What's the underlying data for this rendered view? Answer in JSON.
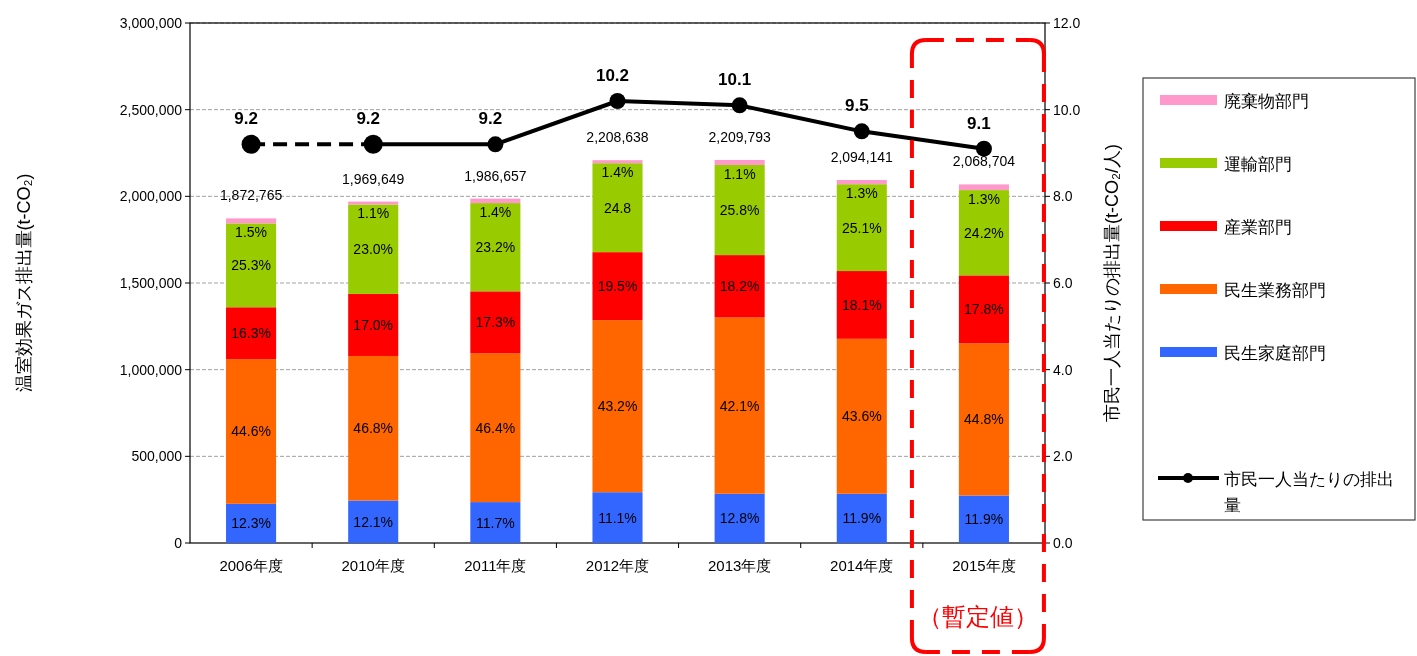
{
  "chart_data": {
    "type": "bar",
    "stacked": true,
    "categories": [
      "2006年度",
      "2010年度",
      "2011年度",
      "2012年度",
      "2013年度",
      "2014年度",
      "2015年度"
    ],
    "series": [
      {
        "name": "民生家庭部門",
        "color": "#3366ff",
        "values": [
          226000,
          245000,
          236000,
          293000,
          284000,
          284000,
          274000
        ]
      },
      {
        "name": "民生業務部門",
        "color": "#ff6600",
        "values": [
          835000,
          834000,
          858000,
          993000,
          1017000,
          894000,
          878000
        ]
      },
      {
        "name": "産業部門",
        "color": "#ff0000",
        "values": [
          299000,
          358000,
          358000,
          392000,
          360000,
          391000,
          392000
        ]
      },
      {
        "name": "運輸部門",
        "color": "#99cc00",
        "values": [
          484000,
          516000,
          509000,
          513000,
          520000,
          501000,
          492000
        ]
      },
      {
        "name": "廃棄物部門",
        "color": "#ff99cc",
        "values": [
          28765,
          16649,
          25657,
          17638,
          28793,
          24141,
          32704
        ]
      },
      {
        "type": "line",
        "axis": "y2",
        "color": "#000000",
        "line_style": "dashed",
        "marker": "circle",
        "values": [
          9.2,
          9.2,
          null,
          null,
          null,
          null,
          null
        ],
        "value_labels": [
          "9.2",
          null,
          null,
          null,
          null,
          null,
          null
        ]
      },
      {
        "name": "市民一人当たりの排出量",
        "type": "line",
        "axis": "y2",
        "color": "#000000",
        "line_style": "solid",
        "marker": "circle",
        "values": [
          null,
          9.2,
          9.2,
          10.2,
          10.1,
          9.5,
          9.1
        ],
        "value_labels": [
          null,
          "9.2",
          "9.2",
          "10.2",
          "10.1",
          "9.5",
          "9.1"
        ]
      }
    ],
    "totals": [
      "1,872,765",
      "1,969,649",
      "1,986,657",
      "2,208,638",
      "2,209,793",
      "2,094,141",
      "2,068,704"
    ],
    "ylim": [
      0,
      3000000
    ],
    "yticks": [
      0,
      {
        "value": 500000,
        "label": "500,000"
      },
      {
        "value": 1000000,
        "label": "1,000,000"
      },
      {
        "value": 1500000,
        "label": "1,500,000"
      },
      {
        "value": 2000000,
        "label": "2,000,000"
      },
      {
        "value": 2500000,
        "label": "2,500,000"
      },
      {
        "value": 3000000,
        "label": "3,000,000"
      }
    ],
    "y2lim": [
      0,
      12
    ],
    "y2ticks": [
      {
        "value": 0,
        "label": "0.0"
      },
      {
        "value": 2,
        "label": "2.0"
      },
      {
        "value": 4,
        "label": "4.0"
      },
      {
        "value": 6,
        "label": "6.0"
      },
      {
        "value": 8,
        "label": "8.0"
      },
      {
        "value": 10,
        "label": "10.0"
      },
      {
        "value": 12,
        "label": "12.0"
      }
    ],
    "ylabel": "温室効果ガス排出量(t-CO₂)",
    "y2label": "市民一人当たりの排出量(t-CO₂/人)",
    "grid": "y",
    "legend": "right",
    "annotations": [
      "12.3%",
      "44.6%",
      "16.3%",
      "25.3%",
      "1.5%",
      "12.1%",
      "46.8%",
      "17.0%",
      "23.0%",
      "1.1%",
      "11.7%",
      "46.4%",
      "17.3%",
      "23.2%",
      "1.4%",
      "11.1%",
      "43.2%",
      "19.5%",
      "24.8",
      "1.4%",
      "12.8%",
      "42.1%",
      "18.2%",
      "25.8%",
      "1.1%",
      "11.9%",
      "43.6%",
      "18.1%",
      "25.1%",
      "1.3%",
      "11.9%",
      "44.8%",
      "17.8%",
      "24.2%",
      "1.3%",
      "（暫定値）"
    ]
  }
}
